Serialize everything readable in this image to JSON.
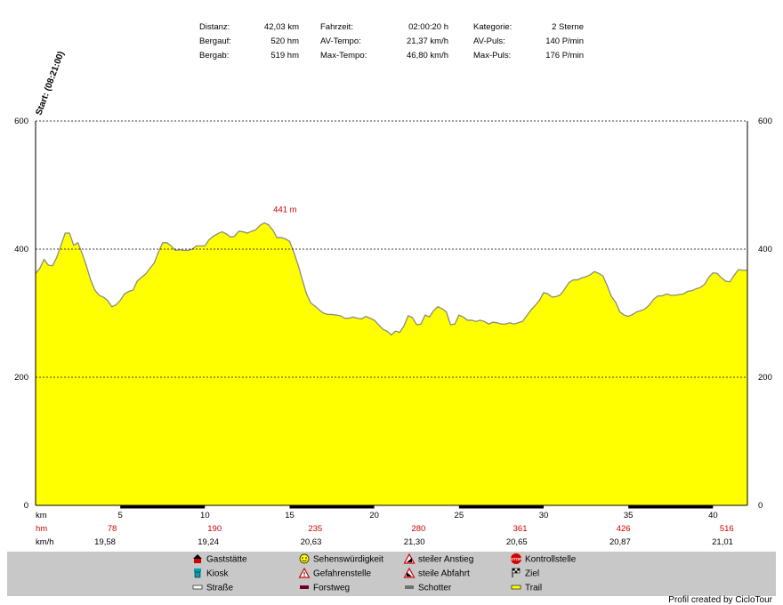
{
  "summary": {
    "rows": [
      [
        {
          "label": "Distanz:",
          "value": "42,03 km"
        },
        {
          "label": "Fahrzeit:",
          "value": "02:00:20 h"
        },
        {
          "label": "Kategorie:",
          "value": "2 Sterne"
        }
      ],
      [
        {
          "label": "Bergauf:",
          "value": "520 hm"
        },
        {
          "label": "AV-Tempo:",
          "value": "21,37 km/h"
        },
        {
          "label": "AV-Puls:",
          "value": "140 P/min"
        }
      ],
      [
        {
          "label": "Bergab:",
          "value": "519 hm"
        },
        {
          "label": "Max-Tempo:",
          "value": "46,80 km/h"
        },
        {
          "label": "Max-Puls:",
          "value": "176 P/min"
        }
      ]
    ]
  },
  "start_label": "Start: (08:21:00)",
  "colors": {
    "fill": "#ffff00",
    "stroke": "#8c8c7a",
    "peak_label": "#cc0000",
    "hm_text": "#cc0000",
    "legend_bg": "#c8c8c8"
  },
  "chart_data": {
    "type": "area",
    "title": "",
    "xlabel": "km",
    "ylabel": "",
    "xlim": [
      0,
      42.03
    ],
    "ylim": [
      0,
      600
    ],
    "y_ticks": [
      0,
      200,
      400,
      600
    ],
    "x_ticks": [
      5,
      10,
      15,
      20,
      25,
      30,
      35,
      40
    ],
    "grid": true,
    "peak": {
      "x": 14.1,
      "y": 441,
      "label": "441 m"
    },
    "x": [
      0,
      0.25,
      0.5,
      0.75,
      1,
      1.25,
      1.5,
      1.75,
      2,
      2.25,
      2.5,
      2.75,
      3,
      3.25,
      3.5,
      3.75,
      4,
      4.25,
      4.5,
      4.75,
      5,
      5.25,
      5.5,
      5.75,
      6,
      6.25,
      6.5,
      6.75,
      7,
      7.25,
      7.5,
      7.75,
      8,
      8.25,
      8.5,
      8.75,
      9,
      9.25,
      9.5,
      9.75,
      10,
      10.25,
      10.5,
      10.75,
      11,
      11.25,
      11.5,
      11.75,
      12,
      12.25,
      12.5,
      12.75,
      13,
      13.25,
      13.5,
      13.75,
      14,
      14.25,
      14.5,
      14.75,
      15,
      15.25,
      15.5,
      15.75,
      16,
      16.25,
      16.5,
      16.75,
      17,
      17.25,
      17.5,
      17.75,
      18,
      18.25,
      18.5,
      18.75,
      19,
      19.25,
      19.5,
      19.75,
      20,
      20.25,
      20.5,
      20.75,
      21,
      21.25,
      21.5,
      21.75,
      22,
      22.25,
      22.5,
      22.75,
      23,
      23.25,
      23.5,
      23.75,
      24,
      24.25,
      24.5,
      24.75,
      25,
      25.25,
      25.5,
      25.75,
      26,
      26.25,
      26.5,
      26.75,
      27,
      27.25,
      27.5,
      27.75,
      28,
      28.25,
      28.5,
      28.75,
      29,
      29.25,
      29.5,
      29.75,
      30,
      30.25,
      30.5,
      30.75,
      31,
      31.25,
      31.5,
      31.75,
      32,
      32.25,
      32.5,
      32.75,
      33,
      33.25,
      33.5,
      33.75,
      34,
      34.25,
      34.5,
      34.75,
      35,
      35.25,
      35.5,
      35.75,
      36,
      36.25,
      36.5,
      36.75,
      37,
      37.25,
      37.5,
      37.75,
      38,
      38.25,
      38.5,
      38.75,
      39,
      39.25,
      39.5,
      39.75,
      40,
      40.25,
      40.5,
      40.75,
      41,
      41.25,
      41.5,
      41.75,
      42.03
    ],
    "y": [
      362,
      370,
      384,
      375,
      374,
      387,
      406,
      425,
      425,
      406,
      410,
      393,
      374,
      352,
      336,
      328,
      325,
      320,
      310,
      313,
      320,
      330,
      334,
      336,
      350,
      356,
      361,
      370,
      378,
      395,
      410,
      410,
      405,
      398,
      399,
      398,
      398,
      400,
      405,
      405,
      405,
      415,
      420,
      424,
      427,
      424,
      419,
      420,
      428,
      427,
      425,
      428,
      430,
      437,
      441,
      438,
      430,
      418,
      418,
      416,
      412,
      395,
      375,
      352,
      330,
      316,
      311,
      305,
      300,
      298,
      298,
      297,
      296,
      292,
      292,
      294,
      292,
      291,
      295,
      292,
      289,
      282,
      275,
      272,
      266,
      272,
      270,
      280,
      296,
      293,
      282,
      283,
      297,
      294,
      304,
      310,
      307,
      302,
      282,
      283,
      297,
      294,
      289,
      289,
      287,
      289,
      287,
      283,
      286,
      285,
      283,
      283,
      285,
      283,
      285,
      287,
      296,
      305,
      312,
      320,
      332,
      330,
      325,
      326,
      329,
      338,
      348,
      352,
      352,
      355,
      357,
      360,
      365,
      362,
      358,
      343,
      326,
      317,
      302,
      297,
      295,
      298,
      302,
      304,
      307,
      313,
      322,
      327,
      327,
      330,
      328,
      328,
      329,
      330,
      334,
      335,
      338,
      340,
      345,
      356,
      363,
      362,
      355,
      350,
      349,
      359,
      368,
      367,
      367
    ],
    "stats_rows": [
      {
        "label": "hm",
        "values": [
          "78",
          "190",
          "235",
          "280",
          "361",
          "426",
          "516"
        ],
        "positions": [
          4.52,
          10.57,
          16.51,
          22.61,
          28.61,
          34.71,
          40.81
        ]
      },
      {
        "label": "km/h",
        "values": [
          "19,58",
          "19,24",
          "20,63",
          "21,30",
          "20,65",
          "20,87",
          "21,01"
        ],
        "positions": [
          4.1,
          10.2,
          16.26,
          22.36,
          28.41,
          34.51,
          40.56
        ]
      }
    ]
  },
  "legend": [
    [
      {
        "icon": "restaurant-icon",
        "label": "Gaststätte"
      },
      {
        "icon": "kiosk-icon",
        "label": "Kiosk"
      },
      {
        "icon": "road-swatch",
        "label": "Straße"
      }
    ],
    [
      {
        "icon": "sight-icon",
        "label": "Sehenswürdigkeit"
      },
      {
        "icon": "danger-icon",
        "label": "Gefahrenstelle"
      },
      {
        "icon": "forest-path-swatch",
        "label": "Forstweg"
      }
    ],
    [
      {
        "icon": "steep-climb-icon",
        "label": "steiler Anstieg"
      },
      {
        "icon": "steep-descent-icon",
        "label": "steile Abfahrt"
      },
      {
        "icon": "gravel-swatch",
        "label": "Schotter"
      }
    ],
    [
      {
        "icon": "stop-icon",
        "label": "Kontrollstelle"
      },
      {
        "icon": "finish-flag-icon",
        "label": "Ziel"
      },
      {
        "icon": "trail-swatch",
        "label": "Trail"
      }
    ]
  ],
  "credit": "Profil created by CicloTour"
}
